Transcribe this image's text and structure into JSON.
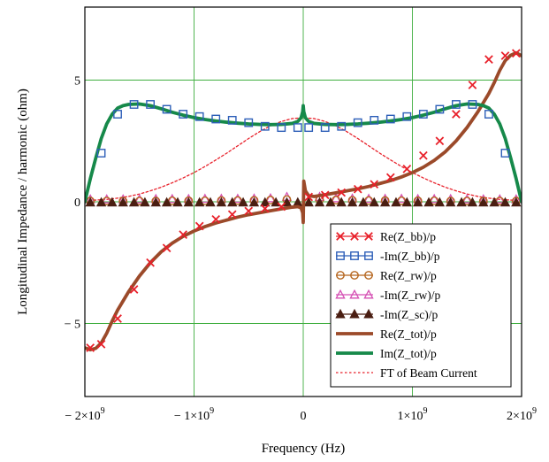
{
  "chart_data": {
    "type": "line",
    "xlabel": "Frequency (Hz)",
    "ylabel": "Longitudinal Impedance / harmonic (ohm)",
    "xlim": [
      -2000000000,
      2000000000
    ],
    "ylim": [
      -8,
      8
    ],
    "grid": true,
    "x_ticks": [
      {
        "value": -2000000000,
        "mant": "− 2×10",
        "exp": "9"
      },
      {
        "value": -1000000000,
        "mant": "− 1×10",
        "exp": "9"
      },
      {
        "value": 0,
        "mant": "0",
        "exp": ""
      },
      {
        "value": 1000000000,
        "mant": "1×10",
        "exp": "9"
      },
      {
        "value": 2000000000,
        "mant": "2×10",
        "exp": "9"
      }
    ],
    "y_ticks": [
      {
        "value": 5,
        "label": "5"
      },
      {
        "value": 0,
        "label": "0"
      },
      {
        "value": -5,
        "label": "− 5"
      }
    ],
    "legend_position": "bottom-right",
    "series": [
      {
        "name": "Re(Z_bb)/p",
        "color": "#e8202a",
        "marker": "x",
        "line": "none",
        "x": [
          -1950000000,
          -1850000000,
          -1700000000,
          -1550000000,
          -1400000000,
          -1250000000,
          -1100000000,
          -950000000,
          -800000000,
          -650000000,
          -500000000,
          -350000000,
          -200000000,
          50000000,
          200000000,
          350000000,
          500000000,
          650000000,
          800000000,
          950000000,
          1100000000,
          1250000000,
          1400000000,
          1550000000,
          1700000000,
          1850000000,
          1950000000
        ],
        "y": [
          -6.0,
          -5.85,
          -4.8,
          -3.6,
          -2.5,
          -1.9,
          -1.35,
          -1.0,
          -0.72,
          -0.52,
          -0.38,
          -0.28,
          -0.2,
          0.2,
          0.28,
          0.38,
          0.52,
          0.72,
          1.0,
          1.35,
          1.9,
          2.5,
          3.6,
          4.8,
          5.85,
          6.0,
          6.1
        ]
      },
      {
        "name": "-Im(Z_bb)/p",
        "color": "#2d5fb8",
        "marker": "square",
        "line": "none",
        "x": [
          -1850000000,
          -1700000000,
          -1550000000,
          -1400000000,
          -1250000000,
          -1100000000,
          -950000000,
          -800000000,
          -650000000,
          -500000000,
          -350000000,
          -200000000,
          -50000000,
          50000000,
          200000000,
          350000000,
          500000000,
          650000000,
          800000000,
          950000000,
          1100000000,
          1250000000,
          1400000000,
          1550000000,
          1700000000,
          1850000000
        ],
        "y": [
          2.0,
          3.6,
          4.0,
          4.0,
          3.8,
          3.6,
          3.5,
          3.4,
          3.35,
          3.25,
          3.1,
          3.05,
          3.05,
          3.05,
          3.05,
          3.1,
          3.25,
          3.35,
          3.4,
          3.5,
          3.6,
          3.8,
          4.0,
          4.0,
          3.6,
          2.0
        ]
      },
      {
        "name": "Re(Z_rw)/p",
        "color": "#b5651d",
        "marker": "circle",
        "line": "none",
        "x": [
          -1950000000,
          -1800000000,
          -1650000000,
          -1500000000,
          -1350000000,
          -1200000000,
          -1050000000,
          -900000000,
          -750000000,
          -600000000,
          -450000000,
          -300000000,
          -150000000,
          150000000,
          300000000,
          450000000,
          600000000,
          750000000,
          900000000,
          1050000000,
          1200000000,
          1350000000,
          1500000000,
          1650000000,
          1800000000,
          1950000000
        ],
        "y": [
          0.03,
          0.03,
          0.03,
          0.03,
          0.03,
          0.04,
          0.04,
          0.04,
          0.05,
          0.05,
          0.06,
          0.07,
          0.09,
          0.09,
          0.07,
          0.06,
          0.05,
          0.05,
          0.04,
          0.04,
          0.04,
          0.03,
          0.03,
          0.03,
          0.03,
          0.03
        ]
      },
      {
        "name": "-Im(Z_rw)/p",
        "color": "#d54fb3",
        "marker": "triangle",
        "line": "none",
        "x": [
          -1950000000,
          -1800000000,
          -1650000000,
          -1500000000,
          -1350000000,
          -1200000000,
          -1050000000,
          -900000000,
          -750000000,
          -600000000,
          -450000000,
          -300000000,
          -150000000,
          150000000,
          300000000,
          450000000,
          600000000,
          750000000,
          900000000,
          1050000000,
          1200000000,
          1350000000,
          1500000000,
          1650000000,
          1800000000,
          1950000000
        ],
        "y": [
          0.1,
          0.1,
          0.1,
          0.1,
          0.11,
          0.11,
          0.11,
          0.12,
          0.12,
          0.12,
          0.13,
          0.14,
          0.2,
          0.2,
          0.14,
          0.13,
          0.12,
          0.12,
          0.12,
          0.11,
          0.11,
          0.11,
          0.1,
          0.1,
          0.1,
          0.1
        ]
      },
      {
        "name": "-Im(Z_sc)/p",
        "color": "#4a1e12",
        "marker": "filled-triangle",
        "line": "none",
        "x": [
          -1950000000,
          -1850000000,
          -1750000000,
          -1650000000,
          -1550000000,
          -1450000000,
          -1350000000,
          -1250000000,
          -1150000000,
          -1050000000,
          -950000000,
          -850000000,
          -750000000,
          -650000000,
          -550000000,
          -450000000,
          -350000000,
          -250000000,
          -150000000,
          -50000000,
          50000000,
          150000000,
          250000000,
          350000000,
          450000000,
          550000000,
          650000000,
          750000000,
          850000000,
          950000000,
          1050000000,
          1150000000,
          1250000000,
          1350000000,
          1450000000,
          1550000000,
          1650000000,
          1750000000,
          1850000000,
          1950000000
        ],
        "y": [
          -0.03,
          -0.03,
          -0.03,
          -0.03,
          -0.03,
          -0.03,
          -0.03,
          -0.03,
          -0.03,
          -0.03,
          -0.03,
          -0.03,
          -0.03,
          -0.03,
          -0.03,
          -0.03,
          -0.03,
          -0.03,
          -0.03,
          -0.03,
          -0.03,
          -0.03,
          -0.03,
          -0.03,
          -0.03,
          -0.03,
          -0.03,
          -0.03,
          -0.03,
          -0.03,
          -0.03,
          -0.03,
          -0.03,
          -0.03,
          -0.03,
          -0.03,
          -0.03,
          -0.03,
          -0.03,
          -0.03
        ]
      },
      {
        "name": "Re(Z_tot)/p",
        "color": "#9b4a2a",
        "marker": "none",
        "line": "solid",
        "x": [
          -2000000000,
          -1950000000,
          -1900000000,
          -1850000000,
          -1800000000,
          -1750000000,
          -1700000000,
          -1600000000,
          -1500000000,
          -1400000000,
          -1300000000,
          -1200000000,
          -1100000000,
          -1000000000,
          -900000000,
          -800000000,
          -700000000,
          -600000000,
          -500000000,
          -400000000,
          -300000000,
          -200000000,
          -100000000,
          -50000000,
          -20000000,
          -5000000,
          0,
          5000000,
          20000000,
          50000000,
          100000000,
          200000000,
          300000000,
          400000000,
          500000000,
          600000000,
          700000000,
          800000000,
          900000000,
          1000000000,
          1100000000,
          1200000000,
          1300000000,
          1400000000,
          1500000000,
          1600000000,
          1700000000,
          1750000000,
          1800000000,
          1850000000,
          1900000000,
          1950000000,
          2000000000
        ],
        "y": [
          -6.0,
          -6.08,
          -6.02,
          -5.8,
          -5.4,
          -4.9,
          -4.45,
          -3.7,
          -3.05,
          -2.5,
          -2.05,
          -1.7,
          -1.42,
          -1.2,
          -1.02,
          -0.87,
          -0.75,
          -0.63,
          -0.53,
          -0.45,
          -0.37,
          -0.29,
          -0.22,
          -0.2,
          -0.25,
          -0.45,
          -0.85,
          0.85,
          0.45,
          0.25,
          0.22,
          0.29,
          0.37,
          0.45,
          0.53,
          0.63,
          0.75,
          0.87,
          1.02,
          1.2,
          1.42,
          1.7,
          2.05,
          2.5,
          3.05,
          3.7,
          4.45,
          4.9,
          5.4,
          5.8,
          6.02,
          6.12,
          6.0
        ]
      },
      {
        "name": "Im(Z_tot)/p",
        "color": "#16894a",
        "marker": "none",
        "line": "solid",
        "x": [
          -2000000000,
          -1950000000,
          -1900000000,
          -1850000000,
          -1800000000,
          -1750000000,
          -1700000000,
          -1650000000,
          -1600000000,
          -1500000000,
          -1400000000,
          -1300000000,
          -1200000000,
          -1100000000,
          -1000000000,
          -900000000,
          -800000000,
          -700000000,
          -600000000,
          -500000000,
          -400000000,
          -300000000,
          -200000000,
          -100000000,
          -50000000,
          -20000000,
          -5000000,
          0,
          5000000,
          20000000,
          50000000,
          100000000,
          200000000,
          300000000,
          400000000,
          500000000,
          600000000,
          700000000,
          800000000,
          900000000,
          1000000000,
          1100000000,
          1200000000,
          1300000000,
          1400000000,
          1500000000,
          1600000000,
          1650000000,
          1700000000,
          1750000000,
          1800000000,
          1850000000,
          1900000000,
          1950000000,
          2000000000
        ],
        "y": [
          0.0,
          0.95,
          1.8,
          2.6,
          3.2,
          3.6,
          3.85,
          3.95,
          4.0,
          4.02,
          3.95,
          3.82,
          3.68,
          3.56,
          3.46,
          3.38,
          3.32,
          3.27,
          3.23,
          3.2,
          3.18,
          3.17,
          3.18,
          3.22,
          3.3,
          3.45,
          3.7,
          3.95,
          3.7,
          3.45,
          3.3,
          3.22,
          3.18,
          3.17,
          3.18,
          3.2,
          3.23,
          3.27,
          3.32,
          3.38,
          3.46,
          3.56,
          3.68,
          3.82,
          3.95,
          4.02,
          4.0,
          3.95,
          3.85,
          3.6,
          3.2,
          2.6,
          1.8,
          0.95,
          0.0
        ]
      },
      {
        "name": "FT of Beam Current",
        "color": "#e8202a",
        "marker": "none",
        "line": "dotted",
        "x": [
          -2000000000,
          -1900000000,
          -1800000000,
          -1700000000,
          -1600000000,
          -1500000000,
          -1400000000,
          -1300000000,
          -1200000000,
          -1100000000,
          -1000000000,
          -900000000,
          -800000000,
          -700000000,
          -600000000,
          -500000000,
          -400000000,
          -300000000,
          -200000000,
          -100000000,
          0,
          100000000,
          200000000,
          300000000,
          400000000,
          500000000,
          600000000,
          700000000,
          800000000,
          900000000,
          1000000000,
          1100000000,
          1200000000,
          1300000000,
          1400000000,
          1500000000,
          1600000000,
          1700000000,
          1800000000,
          1900000000,
          2000000000
        ],
        "y": [
          0.05,
          0.07,
          0.1,
          0.15,
          0.22,
          0.32,
          0.45,
          0.6,
          0.78,
          0.98,
          1.2,
          1.45,
          1.72,
          2.0,
          2.3,
          2.6,
          2.88,
          3.12,
          3.3,
          3.42,
          3.45,
          3.42,
          3.3,
          3.12,
          2.88,
          2.6,
          2.3,
          2.0,
          1.72,
          1.45,
          1.2,
          0.98,
          0.78,
          0.6,
          0.45,
          0.32,
          0.22,
          0.15,
          0.1,
          0.07,
          0.05
        ]
      }
    ]
  }
}
